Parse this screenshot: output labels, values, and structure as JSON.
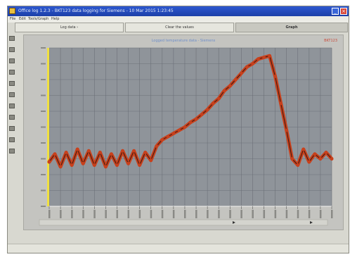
{
  "titlebar": {
    "title": "Office log 1.2.3 - BKT123 data logging for Siemens - 10 Mar 2015 1:23:45",
    "close_glyph": "×",
    "minimize_glyph": "_"
  },
  "menu": [
    "File",
    "Edit",
    "Tools/Graph",
    "Help"
  ],
  "toolbar": {
    "button1": "Log data ›",
    "button2": "Clear the values",
    "button3": "Graph"
  },
  "side_tools": [
    "save-icon",
    "print-icon",
    "zoom-icon",
    "pointer-icon",
    "chart-icon",
    "table-icon",
    "export-icon",
    "settings-icon",
    "grid-icon",
    "refresh-icon",
    "help-icon"
  ],
  "chart": {
    "title": "Logged temperature data - Siemens",
    "flag": "BKT123",
    "colors": {
      "plot_bg": "#8f949a",
      "grid": "#6c7078",
      "series": "#c8401c",
      "highlight": "#f0e040"
    }
  },
  "chart_data": {
    "type": "line",
    "x": [
      0,
      2,
      4,
      6,
      8,
      10,
      12,
      14,
      16,
      18,
      20,
      22,
      24,
      26,
      28,
      30,
      32,
      34,
      36,
      38,
      40,
      42,
      44,
      46,
      48,
      50,
      52,
      54,
      56,
      58,
      60,
      62,
      64,
      66,
      68,
      70,
      72,
      74,
      76,
      78,
      80,
      82,
      84,
      86,
      88,
      90,
      92,
      94,
      96,
      98,
      100
    ],
    "series": [
      {
        "values": [
          28,
          33,
          25,
          34,
          26,
          36,
          27,
          35,
          26,
          34,
          25,
          33,
          26,
          35,
          27,
          35,
          26,
          34,
          29,
          38,
          42,
          44,
          46,
          48,
          50,
          53,
          55,
          58,
          61,
          65,
          68,
          73,
          76,
          80,
          84,
          88,
          90,
          93,
          94,
          95,
          82,
          65,
          48,
          30,
          26,
          36,
          28,
          33,
          30,
          34,
          30
        ]
      }
    ],
    "ylim": [
      0,
      100
    ],
    "grid": true
  },
  "status": {
    "field1": "",
    "field2": "",
    "field3": "",
    "field4": "",
    "time": ""
  }
}
